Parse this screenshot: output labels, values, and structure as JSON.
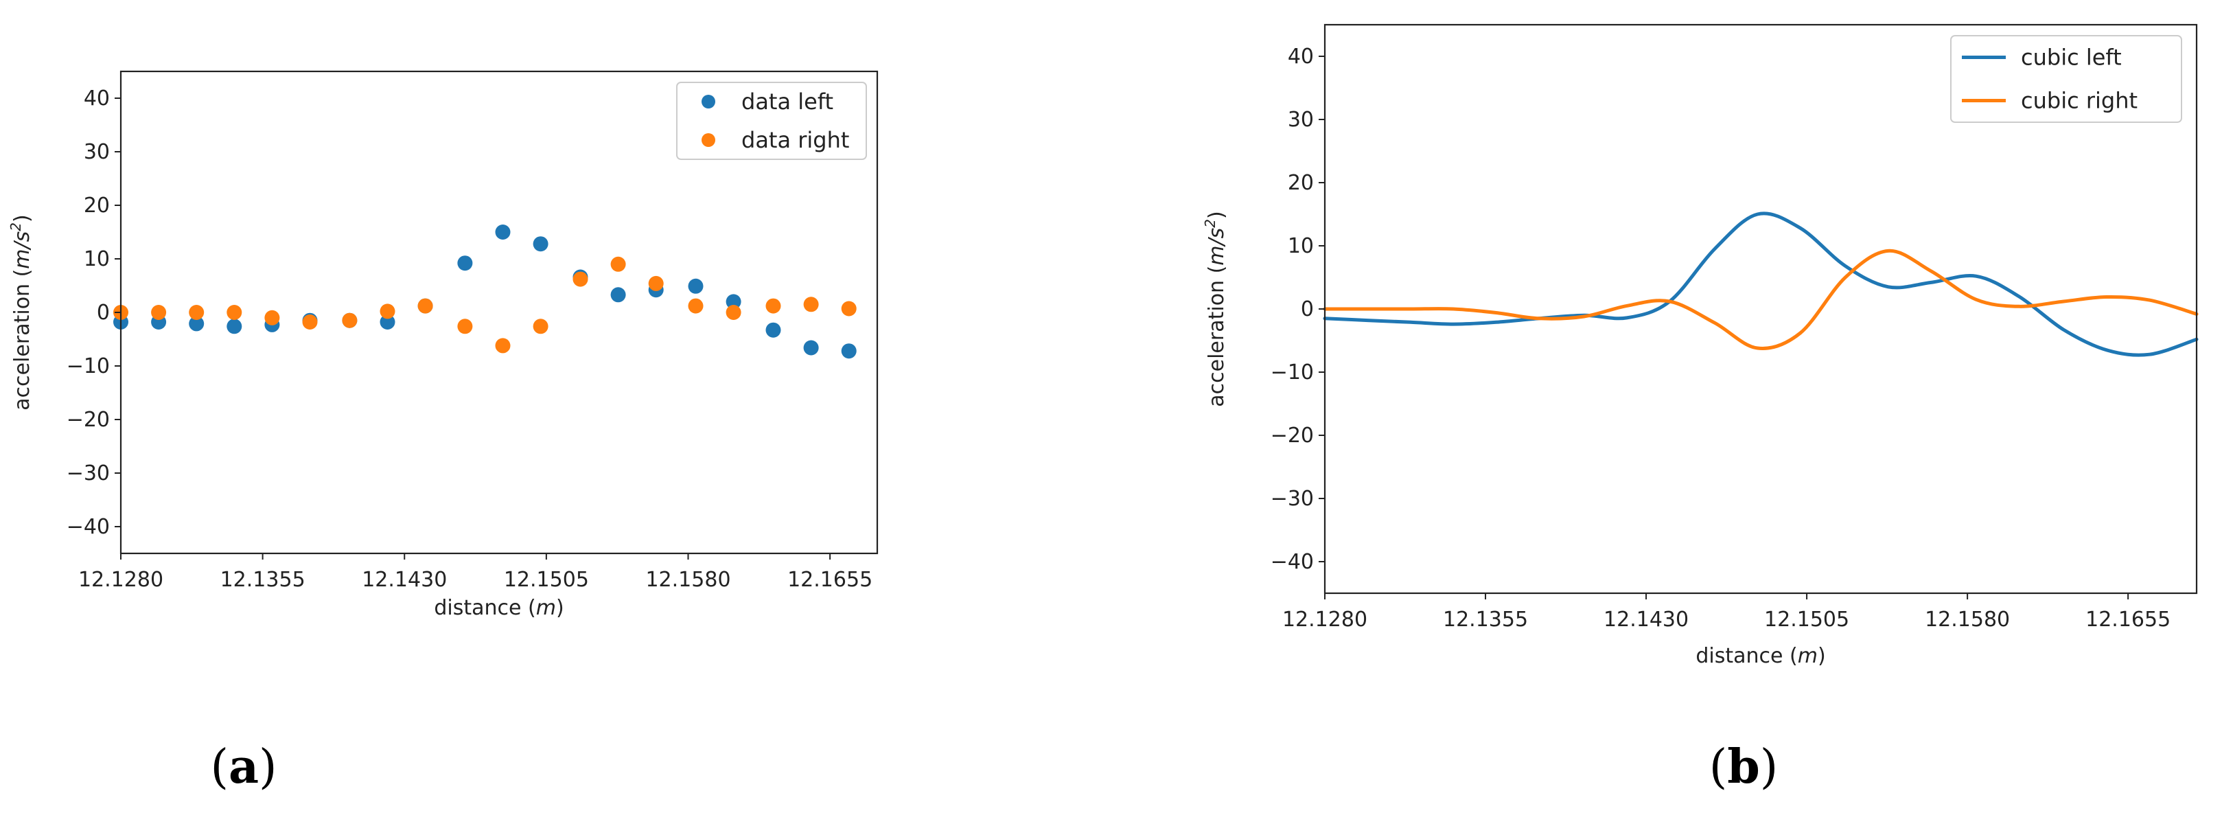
{
  "figure": {
    "panels": [
      {
        "open": "(",
        "letter": "a",
        "close": ")"
      },
      {
        "open": "(",
        "letter": "b",
        "close": ")"
      }
    ]
  },
  "chart_data": [
    {
      "type": "scatter",
      "panel": "a",
      "title": "",
      "xlabel_prefix": "distance (",
      "xlabel_var": "m",
      "xlabel_suffix": ")",
      "ylabel_prefix": "acceleration (",
      "ylabel_var": "m/s",
      "ylabel_sup": "2",
      "ylabel_suffix": ")",
      "xlim": [
        12.128,
        12.168
      ],
      "ylim": [
        -45,
        45
      ],
      "xticks": [
        12.128,
        12.1355,
        12.143,
        12.1505,
        12.158,
        12.1655
      ],
      "xtick_labels": [
        "12.1280",
        "12.1355",
        "12.1430",
        "12.1505",
        "12.1580",
        "12.1655"
      ],
      "yticks": [
        -40,
        -30,
        -20,
        -10,
        0,
        10,
        20,
        30,
        40
      ],
      "ytick_labels": [
        "−40",
        "−30",
        "−20",
        "−10",
        "0",
        "10",
        "20",
        "30",
        "40"
      ],
      "legend_position": "upper-right",
      "series": [
        {
          "name": "data left",
          "color": "#1f77b4",
          "x": [
            12.128,
            12.13,
            12.132,
            12.134,
            12.136,
            12.138,
            12.1401,
            12.1421,
            12.1441,
            12.1462,
            12.1482,
            12.1502,
            12.1523,
            12.1543,
            12.1563,
            12.1584,
            12.1604,
            12.1625,
            12.1645,
            12.1665
          ],
          "y": [
            -1.8,
            -1.8,
            -2.1,
            -2.6,
            -2.3,
            -1.5,
            -1.5,
            -1.8,
            1.2,
            9.2,
            15.0,
            12.8,
            6.6,
            3.3,
            4.2,
            4.9,
            2.0,
            -3.3,
            -6.6,
            -7.2
          ]
        },
        {
          "name": "data right",
          "color": "#ff7f0e",
          "x": [
            12.128,
            12.13,
            12.132,
            12.134,
            12.136,
            12.138,
            12.1401,
            12.1421,
            12.1441,
            12.1462,
            12.1482,
            12.1502,
            12.1523,
            12.1543,
            12.1563,
            12.1584,
            12.1604,
            12.1625,
            12.1645,
            12.1665
          ],
          "y": [
            0.0,
            0.0,
            0.0,
            0.0,
            -1.0,
            -1.8,
            -1.5,
            0.2,
            1.2,
            -2.6,
            -6.2,
            -2.6,
            6.2,
            9.0,
            5.4,
            1.2,
            0.0,
            1.2,
            1.5,
            0.7
          ]
        }
      ]
    },
    {
      "type": "line",
      "panel": "b",
      "title": "",
      "xlabel_prefix": "distance (",
      "xlabel_var": "m",
      "xlabel_suffix": ")",
      "ylabel_prefix": "acceleration (",
      "ylabel_var": "m/s",
      "ylabel_sup": "2",
      "ylabel_suffix": ")",
      "xlim": [
        12.128,
        12.1687
      ],
      "ylim": [
        -45,
        45
      ],
      "xticks": [
        12.128,
        12.1355,
        12.143,
        12.1505,
        12.158,
        12.1655
      ],
      "xtick_labels": [
        "12.1280",
        "12.1355",
        "12.1430",
        "12.1505",
        "12.1580",
        "12.1655"
      ],
      "yticks": [
        -40,
        -30,
        -20,
        -10,
        0,
        10,
        20,
        30,
        40
      ],
      "ytick_labels": [
        "−40",
        "−30",
        "−20",
        "−10",
        "0",
        "10",
        "20",
        "30",
        "40"
      ],
      "legend_position": "upper-right",
      "series": [
        {
          "name": "cubic left",
          "color": "#1f77b4",
          "x": [
            12.128,
            12.13,
            12.132,
            12.134,
            12.136,
            12.138,
            12.1401,
            12.1421,
            12.1441,
            12.1462,
            12.1482,
            12.1502,
            12.1523,
            12.1543,
            12.1563,
            12.1584,
            12.1604,
            12.1625,
            12.1645,
            12.1665,
            12.1687
          ],
          "y": [
            -1.5,
            -1.8,
            -2.1,
            -2.4,
            -2.1,
            -1.5,
            -1.0,
            -1.4,
            1.2,
            9.5,
            15.0,
            12.8,
            6.8,
            3.5,
            4.2,
            5.2,
            2.0,
            -3.3,
            -6.5,
            -7.2,
            -4.8
          ]
        },
        {
          "name": "cubic right",
          "color": "#ff7f0e",
          "x": [
            12.128,
            12.13,
            12.132,
            12.134,
            12.136,
            12.138,
            12.1401,
            12.1421,
            12.1441,
            12.1462,
            12.1482,
            12.1502,
            12.1523,
            12.1543,
            12.1563,
            12.1584,
            12.1604,
            12.1625,
            12.1645,
            12.1665,
            12.1687
          ],
          "y": [
            0.0,
            0.0,
            0.0,
            0.0,
            -0.6,
            -1.5,
            -1.2,
            0.5,
            1.2,
            -2.2,
            -6.2,
            -3.8,
            5.0,
            9.2,
            6.0,
            1.5,
            0.4,
            1.2,
            1.9,
            1.4,
            -0.8
          ]
        }
      ]
    }
  ]
}
